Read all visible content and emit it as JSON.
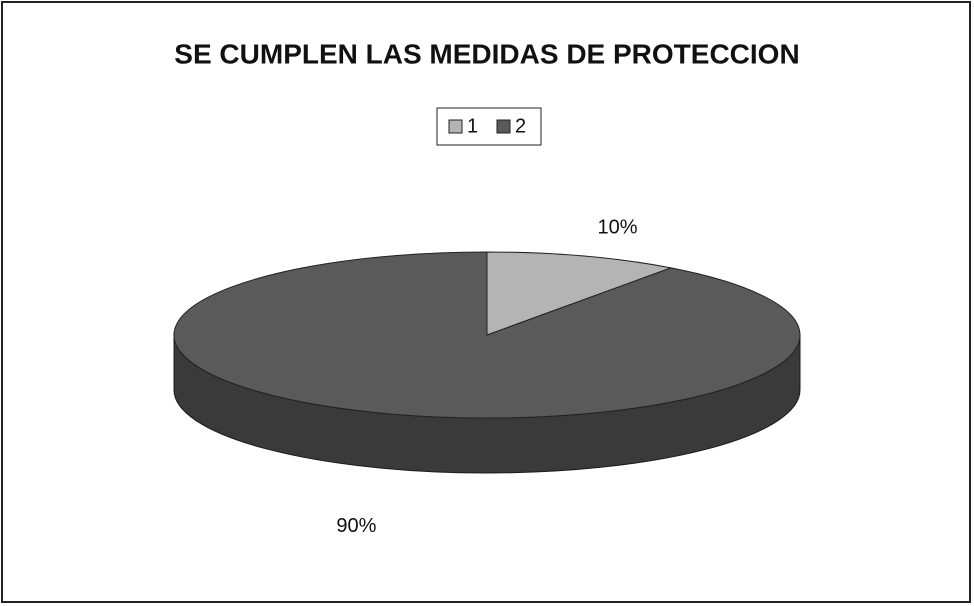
{
  "chart_data": {
    "type": "pie",
    "title": "SE CUMPLEN LAS MEDIDAS DE PROTECCION",
    "categories": [
      "1",
      "2"
    ],
    "values": [
      10,
      90
    ],
    "value_labels": [
      "10%",
      "90%"
    ],
    "colors": [
      "#b4b4b4",
      "#5a5a5a"
    ],
    "legend": "top"
  }
}
